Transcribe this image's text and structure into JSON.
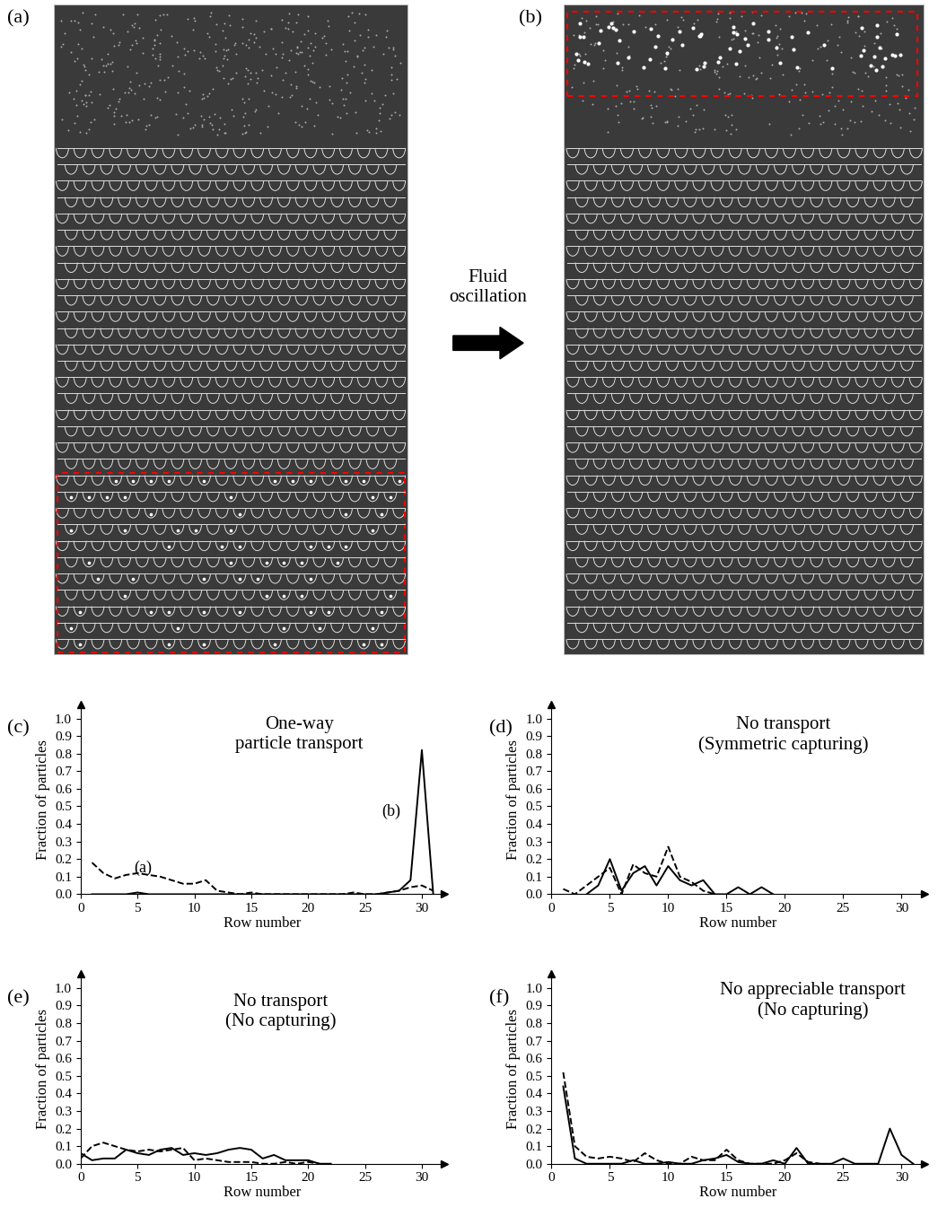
{
  "images": {
    "left_label": "(a)",
    "right_label": "(b)",
    "arrow_text": "Fluid\noscillation"
  },
  "chart_data": [
    {
      "type": "line",
      "label": "(c)",
      "annotation": "One-way\nparticle transport",
      "x_label": "Row number",
      "y_label": "Fraction of particles",
      "xlim": [
        0,
        32
      ],
      "ylim": [
        0,
        1.08
      ],
      "xticks": [
        0,
        5,
        10,
        15,
        20,
        25,
        30
      ],
      "yticks": [
        {
          "value": 0,
          "label": "0.0"
        },
        0.1,
        0.2,
        0.3,
        0.4,
        0.5,
        0.6,
        0.7,
        0.8,
        0.9,
        {
          "value": 1,
          "label": "1.0"
        }
      ],
      "annotations": [
        {
          "text": "(a)",
          "x": 5.5,
          "y": 0.15
        },
        {
          "text": "(b)",
          "x": 27.3,
          "y": 0.47
        }
      ],
      "series": [
        {
          "color": "#000000",
          "line_style": "dashed",
          "x": [
            1,
            2,
            3,
            4,
            5,
            6,
            7,
            8,
            9,
            10,
            11,
            12,
            13,
            14,
            15,
            16,
            17,
            18,
            19,
            20,
            21,
            22,
            23,
            24,
            25,
            26,
            27,
            28,
            29,
            30,
            31
          ],
          "values": [
            0.18,
            0.12,
            0.09,
            0.11,
            0.12,
            0.11,
            0.1,
            0.08,
            0.06,
            0.06,
            0.08,
            0.02,
            0.01,
            0.0,
            0.01,
            0.0,
            0.0,
            0.0,
            0.0,
            0.0,
            0.0,
            0.0,
            0.0,
            0.01,
            0.0,
            0.0,
            0.01,
            0.02,
            0.04,
            0.05,
            0.02
          ]
        },
        {
          "color": "#000000",
          "line_style": "solid",
          "x": [
            1,
            2,
            3,
            4,
            5,
            6,
            7,
            8,
            9,
            10,
            11,
            12,
            13,
            14,
            15,
            16,
            17,
            18,
            19,
            20,
            21,
            22,
            23,
            24,
            25,
            26,
            27,
            28,
            29,
            30,
            31
          ],
          "values": [
            0.0,
            0.0,
            0.0,
            0.0,
            0.01,
            0.0,
            0.0,
            0.0,
            0.0,
            0.0,
            0.0,
            0.0,
            0.0,
            0.0,
            0.0,
            0.0,
            0.0,
            0.0,
            0.0,
            0.0,
            0.0,
            0.0,
            0.0,
            0.0,
            0.0,
            0.0,
            0.01,
            0.02,
            0.08,
            0.82,
            0.0
          ]
        }
      ]
    },
    {
      "type": "line",
      "label": "(d)",
      "annotation": "No transport\n(Symmetric capturing)",
      "x_label": "Row number",
      "y_label": "Fraction of particles",
      "xlim": [
        0,
        32
      ],
      "ylim": [
        0,
        1.08
      ],
      "xticks": [
        0,
        5,
        10,
        15,
        20,
        25,
        30
      ],
      "yticks": [
        {
          "value": 0,
          "label": "0.0"
        },
        0.1,
        0.2,
        0.3,
        0.4,
        0.5,
        0.6,
        0.7,
        0.8,
        0.9,
        {
          "value": 1,
          "label": "1.0"
        }
      ],
      "annotations": [],
      "series": [
        {
          "color": "#000000",
          "line_style": "dashed",
          "x": [
            1,
            2,
            3,
            4,
            5,
            6,
            7,
            8,
            9,
            10,
            11,
            12,
            13,
            14
          ],
          "values": [
            0.03,
            0.0,
            0.05,
            0.1,
            0.15,
            0.0,
            0.17,
            0.12,
            0.1,
            0.27,
            0.1,
            0.07,
            0.02,
            0.0
          ]
        },
        {
          "color": "#000000",
          "line_style": "solid",
          "x": [
            3,
            4,
            5,
            6,
            7,
            8,
            9,
            10,
            11,
            12,
            13,
            14,
            15,
            16,
            17,
            18,
            19
          ],
          "values": [
            0.0,
            0.05,
            0.2,
            0.02,
            0.12,
            0.16,
            0.05,
            0.16,
            0.08,
            0.05,
            0.08,
            0.0,
            0.0,
            0.04,
            0.0,
            0.04,
            0.0
          ]
        }
      ]
    },
    {
      "type": "line",
      "label": "(e)",
      "annotation": "No transport\n(No capturing)",
      "x_label": "Row number",
      "y_label": "Fraction of particles",
      "xlim": [
        0,
        32
      ],
      "ylim": [
        0,
        1.08
      ],
      "xticks": [
        0,
        5,
        10,
        15,
        20,
        25,
        30
      ],
      "yticks": [
        {
          "value": 0,
          "label": "0.0"
        },
        0.1,
        0.2,
        0.3,
        0.4,
        0.5,
        0.6,
        0.7,
        0.8,
        0.9,
        {
          "value": 1,
          "label": "1.0"
        }
      ],
      "annotations": [],
      "series": [
        {
          "color": "#000000",
          "line_style": "dashed",
          "x": [
            0,
            1,
            2,
            3,
            4,
            5,
            6,
            7,
            8,
            9,
            10,
            11,
            12,
            13,
            14,
            15,
            16,
            17,
            18,
            19,
            20,
            21
          ],
          "values": [
            0.03,
            0.1,
            0.12,
            0.1,
            0.08,
            0.07,
            0.08,
            0.07,
            0.08,
            0.09,
            0.02,
            0.03,
            0.02,
            0.01,
            0.01,
            0.01,
            0.0,
            0.0,
            0.01,
            0.0,
            0.01,
            0.0
          ]
        },
        {
          "color": "#000000",
          "line_style": "solid",
          "x": [
            0,
            1,
            2,
            3,
            4,
            5,
            6,
            7,
            8,
            9,
            10,
            11,
            12,
            13,
            14,
            15,
            16,
            17,
            18,
            19,
            20,
            21,
            22
          ],
          "values": [
            0.06,
            0.02,
            0.03,
            0.03,
            0.08,
            0.06,
            0.05,
            0.08,
            0.09,
            0.05,
            0.06,
            0.05,
            0.06,
            0.08,
            0.09,
            0.08,
            0.03,
            0.05,
            0.02,
            0.02,
            0.02,
            0.0,
            0.0
          ]
        }
      ]
    },
    {
      "type": "line",
      "label": "(f)",
      "annotation": "No appreciable transport\n(No capturing)",
      "x_label": "Row number",
      "y_label": "Fraction of particles",
      "xlim": [
        0,
        32
      ],
      "ylim": [
        0,
        1.08
      ],
      "xticks": [
        0,
        5,
        10,
        15,
        20,
        25,
        30
      ],
      "yticks": [
        {
          "value": 0,
          "label": "0.0"
        },
        0.1,
        0.2,
        0.3,
        0.4,
        0.5,
        0.6,
        0.7,
        0.8,
        0.9,
        {
          "value": 1,
          "label": "1.0"
        }
      ],
      "annotations": [],
      "series": [
        {
          "color": "#000000",
          "line_style": "dashed",
          "x": [
            1,
            2,
            3,
            4,
            5,
            6,
            7,
            8,
            9,
            10,
            11,
            12,
            13,
            14,
            15,
            16,
            17,
            18,
            19,
            20,
            21,
            22,
            23
          ],
          "values": [
            0.52,
            0.1,
            0.04,
            0.03,
            0.04,
            0.03,
            0.01,
            0.06,
            0.02,
            0.0,
            0.0,
            0.04,
            0.02,
            0.02,
            0.08,
            0.02,
            0.0,
            0.0,
            0.0,
            0.02,
            0.06,
            0.01,
            0.0
          ]
        },
        {
          "color": "#000000",
          "line_style": "solid",
          "x": [
            1,
            2,
            3,
            4,
            5,
            6,
            7,
            8,
            9,
            10,
            11,
            12,
            13,
            14,
            15,
            16,
            17,
            18,
            19,
            20,
            21,
            22,
            23,
            24,
            25,
            26,
            27,
            28,
            29,
            30,
            31
          ],
          "values": [
            0.44,
            0.03,
            0.0,
            0.0,
            0.0,
            0.0,
            0.02,
            0.0,
            0.0,
            0.01,
            0.0,
            0.0,
            0.02,
            0.03,
            0.05,
            0.01,
            0.0,
            0.0,
            0.02,
            0.0,
            0.09,
            0.0,
            0.0,
            0.0,
            0.03,
            0.0,
            0.0,
            0.0,
            0.2,
            0.05,
            0.0
          ]
        }
      ]
    }
  ]
}
